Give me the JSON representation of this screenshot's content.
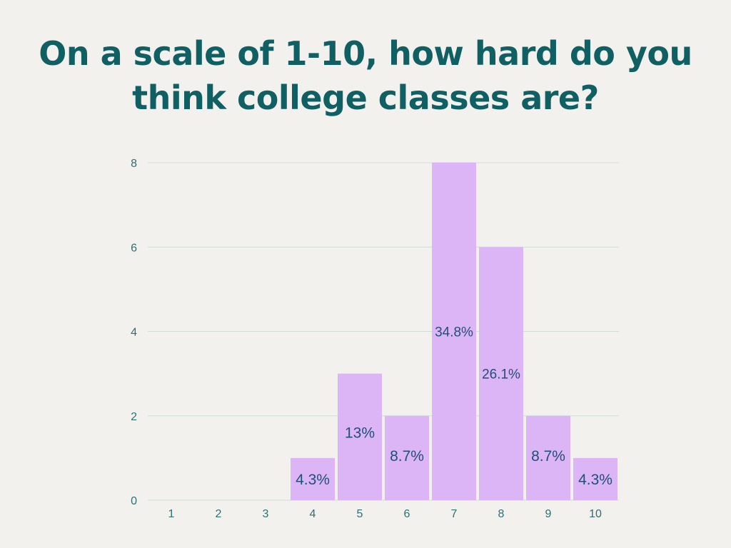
{
  "chart_data": {
    "type": "bar",
    "title": "On a scale of 1-10, how hard do you think college classes are?",
    "xlabel": "",
    "ylabel": "",
    "categories": [
      "1",
      "2",
      "3",
      "4",
      "5",
      "6",
      "7",
      "8",
      "9",
      "10"
    ],
    "values": [
      0,
      0,
      0,
      1,
      3,
      2,
      8,
      6,
      2,
      1
    ],
    "data_labels": [
      "",
      "",
      "",
      "4.3%",
      "13%",
      "8.7%",
      "34.8%",
      "26.1%",
      "8.7%",
      "4.3%"
    ],
    "ylim": [
      0,
      8
    ],
    "yticks": [
      0,
      2,
      4,
      6,
      8
    ],
    "grid": true,
    "legend": "none"
  },
  "colors": {
    "background": "#f3f1ed",
    "title": "#0f5f63",
    "bar": "#dcb5f7",
    "grid": "#cfded8",
    "tick_label": "#2e6f73",
    "data_label": "#1f4f7a"
  }
}
